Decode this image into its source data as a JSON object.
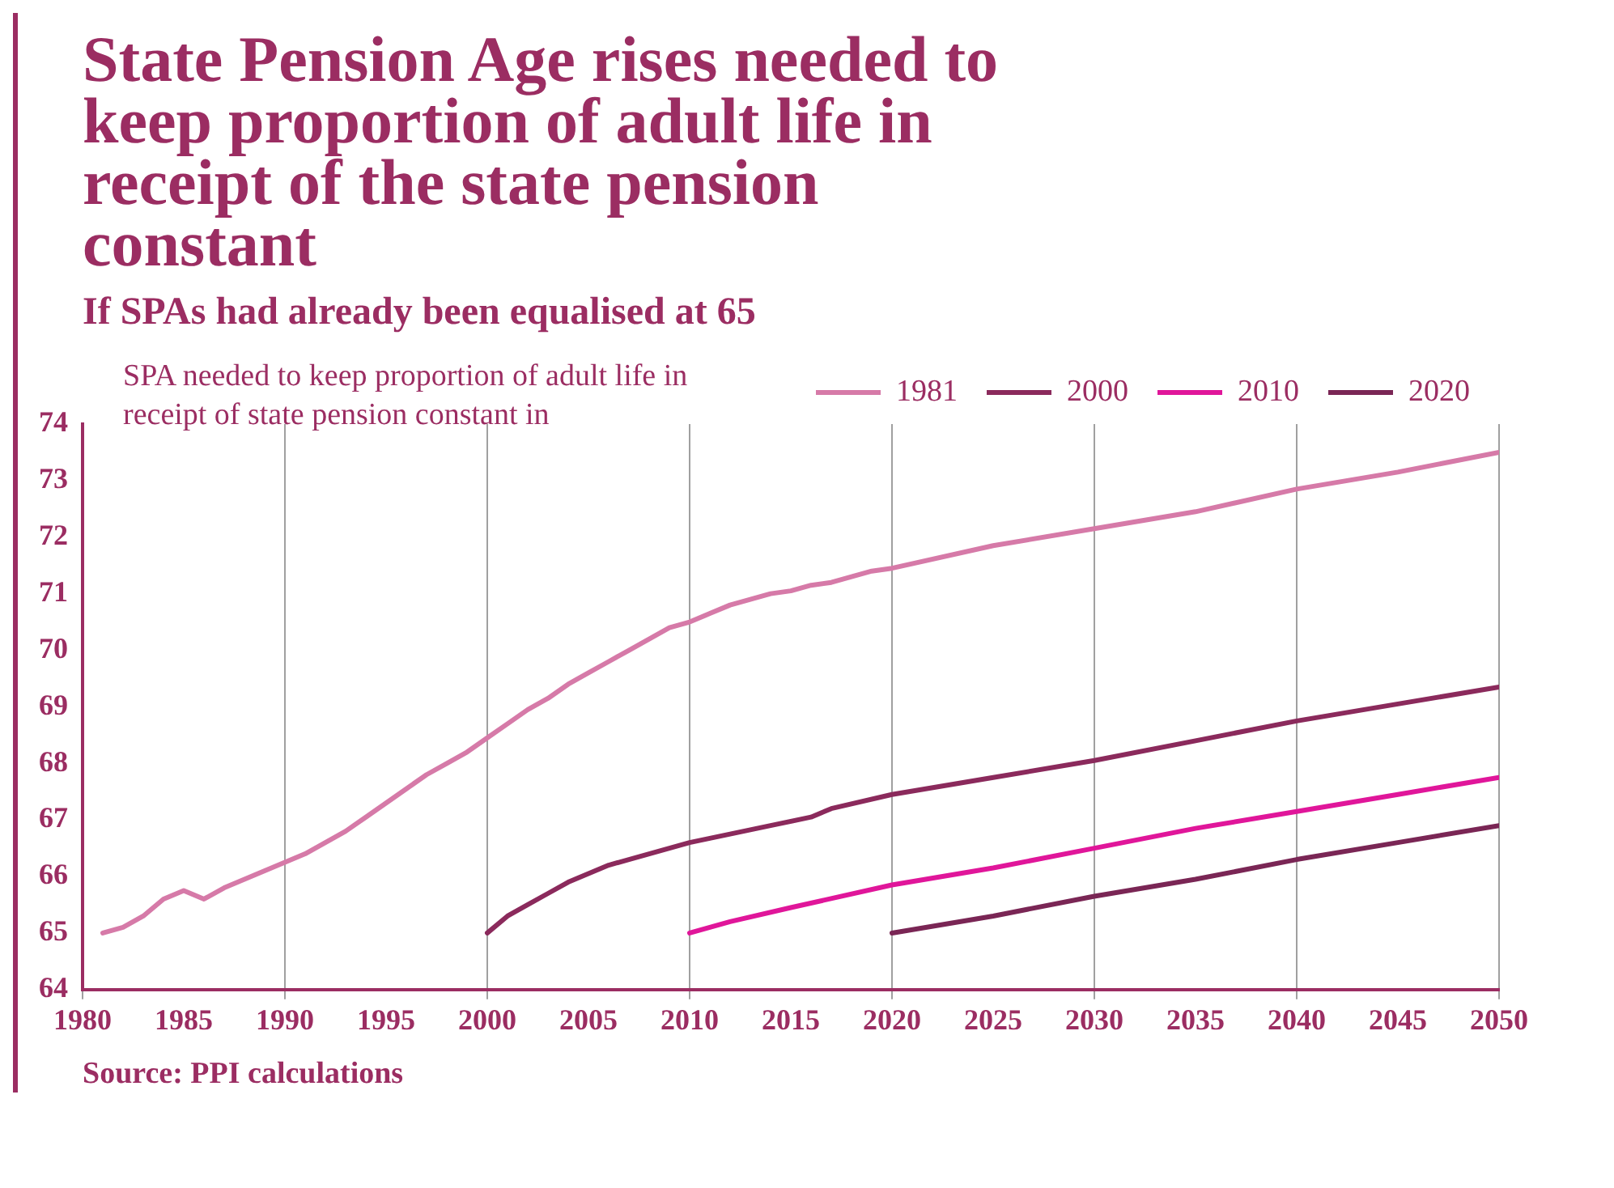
{
  "chart_data": {
    "type": "line",
    "title": "State Pension Age rises needed to keep proportion of adult life in receipt of the state pension constant",
    "subtitle": "If SPAs had already been equalised at 65",
    "ylabel": "SPA needed to keep proportion of adult life in receipt of state pension constant in",
    "annotations": [
      "Source: PPI calculations"
    ],
    "xlim": [
      1980,
      2050
    ],
    "xticks": [
      1980,
      1985,
      1990,
      1995,
      2000,
      2005,
      2010,
      2015,
      2020,
      2025,
      2030,
      2035,
      2040,
      2045,
      2050
    ],
    "ylim": [
      64,
      74
    ],
    "yticks": [
      64,
      65,
      66,
      67,
      68,
      69,
      70,
      71,
      72,
      73,
      74
    ],
    "grid": "x",
    "legend": "top right",
    "marker": "none",
    "line_style": "solid",
    "series": [
      {
        "name": "1981",
        "color": "#d67aa8",
        "x": [
          1981,
          1982,
          1983,
          1984,
          1985,
          1986,
          1987,
          1988,
          1989,
          1990,
          1991,
          1992,
          1993,
          1994,
          1995,
          1996,
          1997,
          1998,
          1999,
          2000,
          2001,
          2002,
          2003,
          2004,
          2005,
          2006,
          2007,
          2008,
          2009,
          2010,
          2011,
          2012,
          2013,
          2014,
          2015,
          2016,
          2017,
          2018,
          2019,
          2020,
          2025,
          2030,
          2035,
          2040,
          2045,
          2050
        ],
        "values": [
          65.0,
          65.1,
          65.3,
          65.6,
          65.75,
          65.6,
          65.8,
          65.95,
          66.1,
          66.25,
          66.4,
          66.6,
          66.8,
          67.05,
          67.3,
          67.55,
          67.8,
          68.0,
          68.2,
          68.45,
          68.7,
          68.95,
          69.15,
          69.4,
          69.6,
          69.8,
          70.0,
          70.2,
          70.4,
          70.5,
          70.65,
          70.8,
          70.9,
          71.0,
          71.05,
          71.15,
          71.2,
          71.3,
          71.4,
          71.45,
          71.85,
          72.15,
          72.45,
          72.85,
          73.15,
          73.5
        ]
      },
      {
        "name": "2000",
        "color": "#8b2a5c",
        "x": [
          2000,
          2001,
          2002,
          2003,
          2004,
          2005,
          2006,
          2007,
          2008,
          2009,
          2010,
          2012,
          2014,
          2016,
          2017,
          2020,
          2025,
          2030,
          2035,
          2040,
          2045,
          2050
        ],
        "values": [
          65.0,
          65.3,
          65.5,
          65.7,
          65.9,
          66.05,
          66.2,
          66.3,
          66.4,
          66.5,
          66.6,
          66.75,
          66.9,
          67.05,
          67.2,
          67.45,
          67.75,
          68.05,
          68.4,
          68.75,
          69.05,
          69.35
        ]
      },
      {
        "name": "2010",
        "color": "#e0169a",
        "x": [
          2010,
          2012,
          2015,
          2020,
          2025,
          2030,
          2035,
          2040,
          2045,
          2050
        ],
        "values": [
          65.0,
          65.2,
          65.45,
          65.85,
          66.15,
          66.5,
          66.85,
          67.15,
          67.45,
          67.75
        ]
      },
      {
        "name": "2020",
        "color": "#7a2655",
        "x": [
          2020,
          2025,
          2030,
          2035,
          2040,
          2045,
          2050
        ],
        "values": [
          65.0,
          65.3,
          65.65,
          65.95,
          66.3,
          66.6,
          66.9
        ]
      }
    ]
  }
}
